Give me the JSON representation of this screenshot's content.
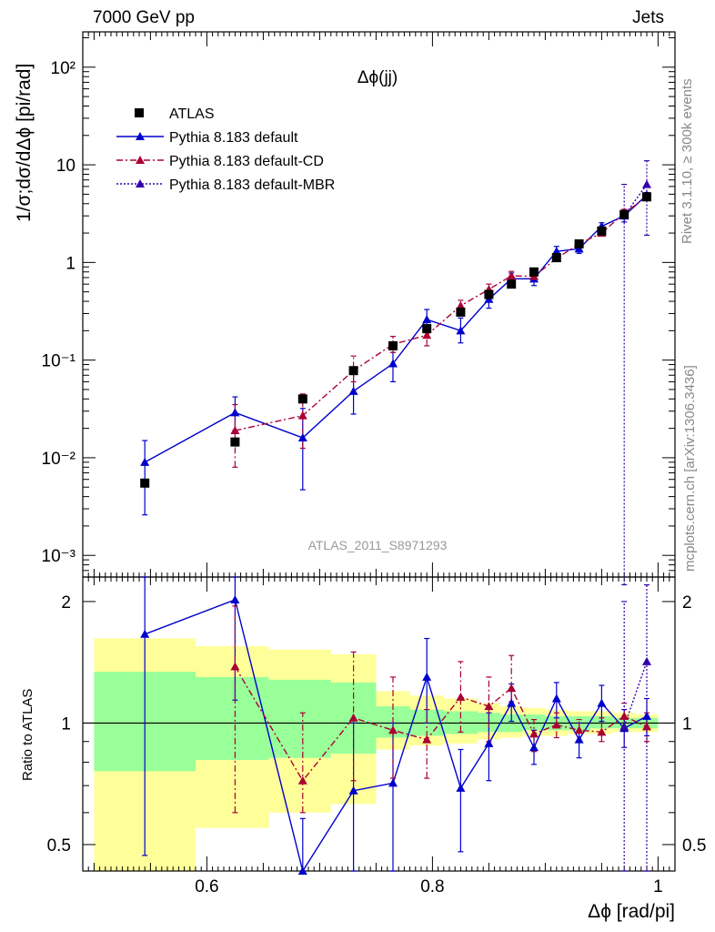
{
  "header": {
    "left": "7000 GeV pp",
    "right": "Jets"
  },
  "side_labels": {
    "top": "Rivet 3.1.10, ≥ 300k events",
    "bottom": "mcplots.cern.ch [arXiv:1306.3436]"
  },
  "chart_data": {
    "type": "scatter",
    "title": "Δϕ(jj)",
    "analysis_label": "ATLAS_2011_S8971293",
    "xlabel": "Δϕ [rad/pi]",
    "ylabel": "1/σ;dσ/dΔϕ [pi/rad]",
    "ratio_ylabel": "Ratio to ATLAS",
    "xlim": [
      0.49,
      1.015
    ],
    "ylim": [
      0.0006,
      230
    ],
    "yscale": "log",
    "ratio_ylim": [
      0.43,
      2.3
    ],
    "ratio_yscale": "log",
    "xticks": [
      0.6,
      0.8,
      1
    ],
    "xtick_labels": [
      "0.6",
      "0.8",
      "1"
    ],
    "yticks": [
      0.001,
      0.01,
      0.1,
      1,
      10,
      100
    ],
    "ytick_labels": [
      "10⁻³",
      "10⁻²",
      "10⁻¹",
      "1",
      "10",
      "10²"
    ],
    "ratio_yticks": [
      0.5,
      1,
      2
    ],
    "ratio_ytick_labels": [
      "0.5",
      "1",
      "2"
    ],
    "legend": [
      "ATLAS",
      "Pythia 8.183 default",
      "Pythia 8.183 default-CD",
      "Pythia 8.183 default-MBR"
    ],
    "colors": {
      "atlas": "#000000",
      "default": "#0000cc",
      "cd": "#aa0033",
      "mbr": "#3300aa",
      "band_inner": "#99ff99",
      "band_outer": "#ffff99"
    },
    "atlas": {
      "x": [
        0.545,
        0.625,
        0.685,
        0.73,
        0.765,
        0.795,
        0.825,
        0.85,
        0.87,
        0.89,
        0.91,
        0.93,
        0.95,
        0.97,
        0.99
      ],
      "y": [
        0.0055,
        0.0145,
        0.04,
        0.078,
        0.14,
        0.21,
        0.31,
        0.47,
        0.6,
        0.8,
        1.12,
        1.55,
        2.1,
        3.1,
        4.7
      ]
    },
    "band": [
      {
        "x0": 0.5,
        "x1": 0.59,
        "inner": [
          0.76,
          1.34
        ],
        "outer": [
          0.43,
          1.62
        ]
      },
      {
        "x0": 0.59,
        "x1": 0.655,
        "inner": [
          0.81,
          1.3
        ],
        "outer": [
          0.55,
          1.55
        ]
      },
      {
        "x0": 0.655,
        "x1": 0.71,
        "inner": [
          0.82,
          1.28
        ],
        "outer": [
          0.6,
          1.52
        ]
      },
      {
        "x0": 0.71,
        "x1": 0.75,
        "inner": [
          0.84,
          1.26
        ],
        "outer": [
          0.63,
          1.48
        ]
      },
      {
        "x0": 0.75,
        "x1": 0.78,
        "inner": [
          0.92,
          1.1
        ],
        "outer": [
          0.86,
          1.2
        ]
      },
      {
        "x0": 0.78,
        "x1": 0.81,
        "inner": [
          0.93,
          1.08
        ],
        "outer": [
          0.88,
          1.17
        ]
      },
      {
        "x0": 0.81,
        "x1": 0.84,
        "inner": [
          0.94,
          1.07
        ],
        "outer": [
          0.89,
          1.15
        ]
      },
      {
        "x0": 0.84,
        "x1": 0.86,
        "inner": [
          0.95,
          1.06
        ],
        "outer": [
          0.91,
          1.12
        ]
      },
      {
        "x0": 0.86,
        "x1": 0.88,
        "inner": [
          0.95,
          1.05
        ],
        "outer": [
          0.92,
          1.1
        ]
      },
      {
        "x0": 0.88,
        "x1": 0.9,
        "inner": [
          0.96,
          1.05
        ],
        "outer": [
          0.93,
          1.09
        ]
      },
      {
        "x0": 0.9,
        "x1": 0.92,
        "inner": [
          0.96,
          1.04
        ],
        "outer": [
          0.93,
          1.08
        ]
      },
      {
        "x0": 0.92,
        "x1": 0.94,
        "inner": [
          0.96,
          1.04
        ],
        "outer": [
          0.94,
          1.07
        ]
      },
      {
        "x0": 0.94,
        "x1": 0.96,
        "inner": [
          0.97,
          1.04
        ],
        "outer": [
          0.94,
          1.07
        ]
      },
      {
        "x0": 0.96,
        "x1": 0.98,
        "inner": [
          0.97,
          1.03
        ],
        "outer": [
          0.95,
          1.06
        ]
      },
      {
        "x0": 0.98,
        "x1": 1.0,
        "inner": [
          0.97,
          1.03
        ],
        "outer": [
          0.95,
          1.05
        ]
      }
    ],
    "series": [
      {
        "name": "Pythia 8.183 default",
        "key": "default",
        "style": "solid",
        "x": [
          0.545,
          0.625,
          0.685,
          0.73,
          0.765,
          0.795,
          0.825,
          0.85,
          0.87,
          0.89,
          0.91,
          0.93,
          0.95,
          0.97,
          0.99
        ],
        "y": [
          0.009,
          0.029,
          0.016,
          0.048,
          0.092,
          0.26,
          0.2,
          0.42,
          0.68,
          0.68,
          1.3,
          1.38,
          2.35,
          3.0,
          4.9
        ],
        "yerr": [
          [
            0.0026,
            0.015
          ],
          [
            0.019,
            0.042
          ],
          [
            0.0047,
            0.032
          ],
          [
            0.028,
            0.075
          ],
          [
            0.06,
            0.12
          ],
          [
            0.2,
            0.33
          ],
          [
            0.15,
            0.27
          ],
          [
            0.34,
            0.52
          ],
          [
            0.6,
            0.78
          ],
          [
            0.58,
            0.78
          ],
          [
            1.14,
            1.46
          ],
          [
            1.24,
            1.52
          ],
          [
            2.15,
            2.55
          ],
          [
            2.6,
            3.4
          ],
          [
            4.6,
            5.2
          ]
        ],
        "ratio": [
          1.66,
          2.02,
          0.41,
          0.68,
          0.71,
          1.3,
          0.69,
          0.89,
          1.12,
          0.87,
          1.15,
          0.91,
          1.12,
          0.97,
          1.04
        ],
        "ratio_err": [
          [
            0.47,
            2.3
          ],
          [
            1.14,
            2.3
          ],
          [
            0.4,
            0.58
          ],
          [
            0.36,
            1.0
          ],
          [
            0.38,
            1.0
          ],
          [
            1.0,
            1.62
          ],
          [
            0.48,
            0.86
          ],
          [
            0.72,
            1.06
          ],
          [
            1.01,
            1.25
          ],
          [
            0.79,
            0.96
          ],
          [
            1.03,
            1.26
          ],
          [
            0.82,
            1.0
          ],
          [
            1.01,
            1.24
          ],
          [
            0.87,
            1.08
          ],
          [
            0.93,
            1.15
          ]
        ]
      },
      {
        "name": "Pythia 8.183 default-CD",
        "key": "cd",
        "style": "dashdot",
        "x": [
          0.625,
          0.685,
          0.73,
          0.765,
          0.795,
          0.825,
          0.85,
          0.87,
          0.89,
          0.91,
          0.93,
          0.95,
          0.97,
          0.99
        ],
        "y": [
          0.019,
          0.027,
          0.078,
          0.145,
          0.18,
          0.36,
          0.53,
          0.73,
          0.72,
          1.1,
          1.55,
          2.0,
          3.2,
          4.7
        ],
        "yerr": [
          [
            0.008,
            0.035
          ],
          [
            0.0125,
            0.045
          ],
          [
            0.06,
            0.11
          ],
          [
            0.12,
            0.175
          ],
          [
            0.14,
            0.22
          ],
          [
            0.31,
            0.41
          ],
          [
            0.47,
            0.6
          ],
          [
            0.66,
            0.81
          ],
          [
            0.66,
            0.78
          ],
          [
            1.02,
            1.18
          ],
          [
            1.45,
            1.65
          ],
          [
            1.9,
            2.12
          ],
          [
            2.9,
            3.5
          ],
          [
            4.3,
            5.1
          ]
        ],
        "ratio": [
          1.38,
          0.72,
          1.03,
          0.96,
          0.91,
          1.16,
          1.1,
          1.22,
          0.94,
          0.99,
          0.96,
          0.95,
          1.04,
          0.98
        ],
        "ratio_err": [
          [
            0.6,
            1.95
          ],
          [
            0.6,
            1.06
          ],
          [
            0.72,
            1.5
          ],
          [
            0.73,
            1.3
          ],
          [
            0.73,
            1.08
          ],
          [
            0.95,
            1.42
          ],
          [
            0.9,
            1.3
          ],
          [
            1.13,
            1.47
          ],
          [
            0.85,
            1.02
          ],
          [
            0.92,
            1.06
          ],
          [
            0.9,
            1.02
          ],
          [
            0.9,
            1.03
          ],
          [
            0.96,
            1.12
          ],
          [
            0.9,
            1.06
          ]
        ]
      },
      {
        "name": "Pythia 8.183 default-MBR",
        "key": "mbr",
        "style": "dotted",
        "x": [
          0.97,
          0.99
        ],
        "y": [
          3.0,
          6.3
        ],
        "yerr": [
          [
            0.0005,
            6.3
          ],
          [
            1.9,
            11
          ]
        ],
        "ratio": [
          0.98,
          1.42
        ],
        "ratio_err": [
          [
            0.43,
            2.0
          ],
          [
            0.43,
            2.2
          ]
        ]
      }
    ]
  }
}
